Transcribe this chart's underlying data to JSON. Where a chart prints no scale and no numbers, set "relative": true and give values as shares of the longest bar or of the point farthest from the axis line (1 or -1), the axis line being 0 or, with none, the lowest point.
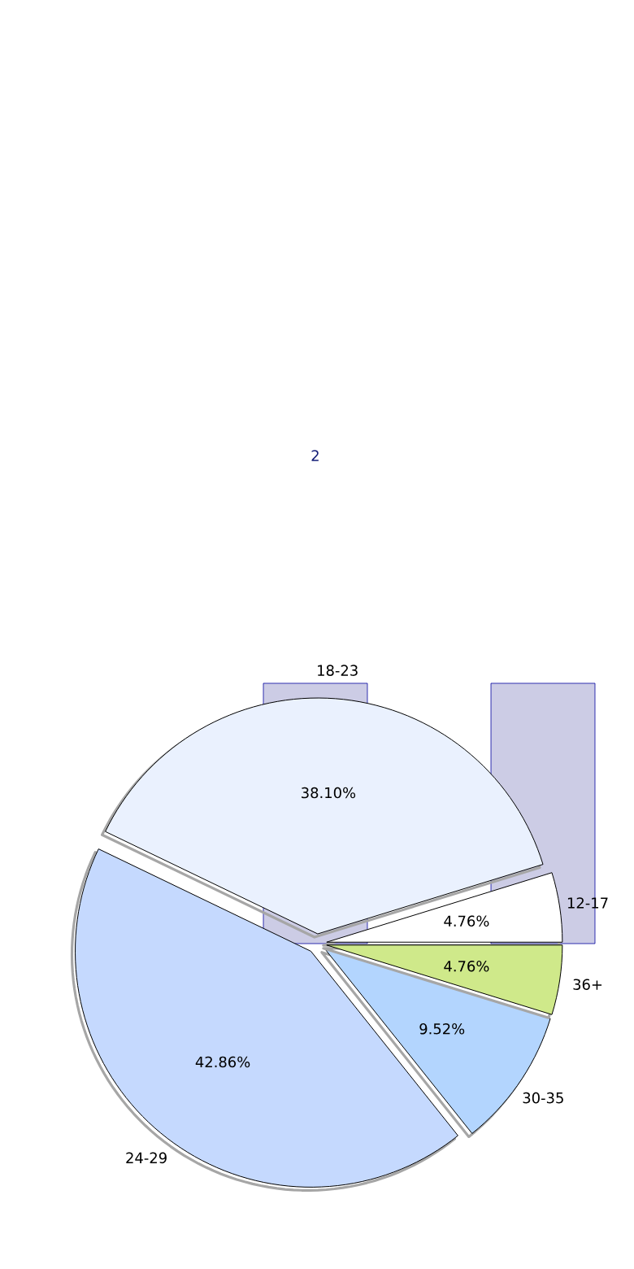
{
  "chart_data": [
    {
      "type": "bar",
      "categories": [
        null,
        null
      ],
      "values": [
        1,
        1
      ],
      "color": "#ccccE5",
      "relative": true,
      "annotations": [
        "2"
      ]
    },
    {
      "type": "pie",
      "categories": [
        "12-17",
        "18-23",
        "24-29",
        "30-35",
        "36+"
      ],
      "values": [
        4.76,
        38.1,
        42.86,
        9.52,
        4.76
      ],
      "colors": [
        "#ffffff",
        "#eaf1fe",
        "#c5d9fe",
        "#b3d5fe",
        "#cfe98a"
      ],
      "value_labels": [
        "4.76%",
        "38.10%",
        "42.86%",
        "9.52%",
        "4.76%"
      ]
    }
  ]
}
